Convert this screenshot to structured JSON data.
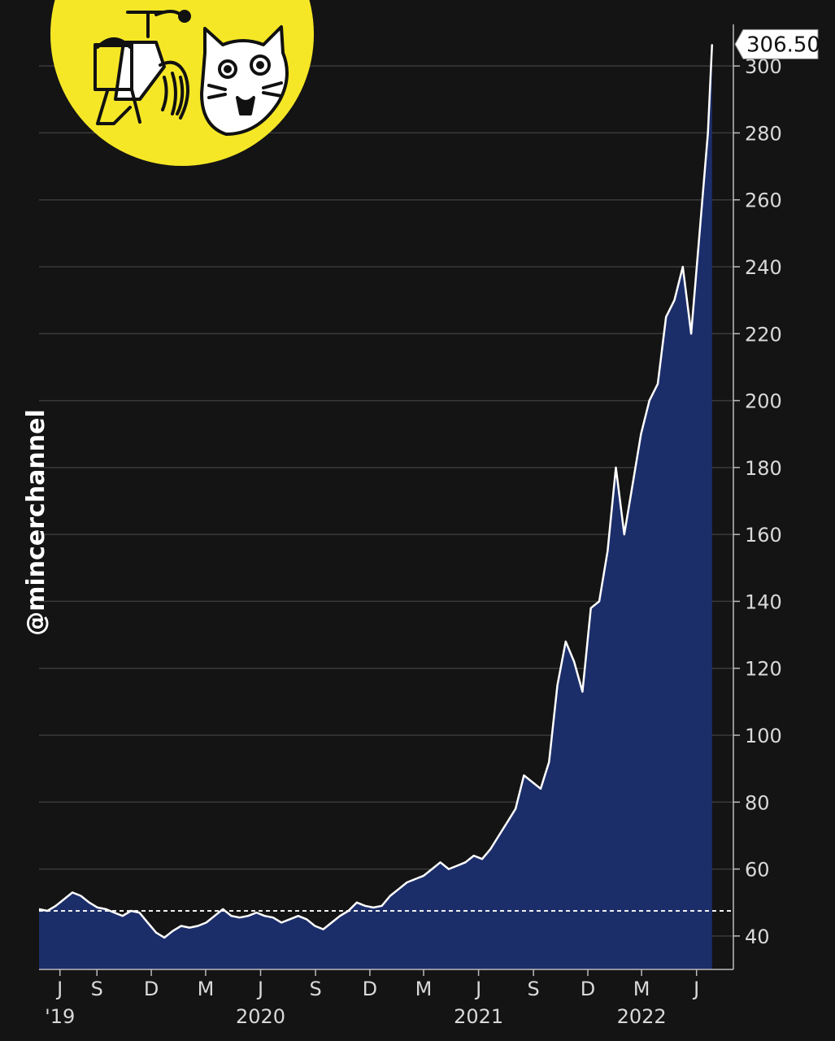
{
  "watermark": {
    "text": "@mincerchannel"
  },
  "logo": {
    "color": "#f5e726",
    "icons": [
      "meat-grinder-icon",
      "cat-face-icon"
    ]
  },
  "colors": {
    "background": "#141414",
    "area_fill": "#1c2e6a",
    "line": "#ffffff",
    "grid": "#3a3a3a",
    "reference_line": "#e03a3a"
  },
  "chart_data": {
    "type": "area",
    "title": "",
    "xlabel": "",
    "ylabel": "",
    "ylim": [
      30,
      310
    ],
    "yticks": [
      40,
      60,
      80,
      100,
      120,
      140,
      160,
      180,
      200,
      220,
      240,
      260,
      280,
      300
    ],
    "grid": true,
    "last_value_label": "306.50",
    "reference_line": {
      "value": 47.5,
      "style": "dashed"
    },
    "x_ticks": [
      {
        "label": "J",
        "date": "2019-07-01"
      },
      {
        "label": "S",
        "date": "2019-09-01"
      },
      {
        "label": "D",
        "date": "2019-12-01"
      },
      {
        "label": "M",
        "date": "2020-03-01"
      },
      {
        "label": "J",
        "date": "2020-06-01"
      },
      {
        "label": "S",
        "date": "2020-09-01"
      },
      {
        "label": "D",
        "date": "2020-12-01"
      },
      {
        "label": "M",
        "date": "2021-03-01"
      },
      {
        "label": "J",
        "date": "2021-06-01"
      },
      {
        "label": "S",
        "date": "2021-09-01"
      },
      {
        "label": "D",
        "date": "2021-12-01"
      },
      {
        "label": "M",
        "date": "2022-03-01"
      },
      {
        "label": "J",
        "date": "2022-06-01"
      }
    ],
    "year_labels": [
      {
        "label": "'19",
        "date": "2019-07-01"
      },
      {
        "label": "2020",
        "date": "2020-06-01"
      },
      {
        "label": "2021",
        "date": "2021-06-01"
      },
      {
        "label": "2022",
        "date": "2022-03-01"
      }
    ],
    "series": [
      {
        "x": [
          "2019-05-27",
          "2019-06-10",
          "2019-06-24",
          "2019-07-08",
          "2019-07-22",
          "2019-08-05",
          "2019-08-19",
          "2019-09-02",
          "2019-09-16",
          "2019-09-30",
          "2019-10-14",
          "2019-10-28",
          "2019-11-11",
          "2019-11-25",
          "2019-12-09",
          "2019-12-23",
          "2020-01-06",
          "2020-01-20",
          "2020-02-03",
          "2020-02-17",
          "2020-03-02",
          "2020-03-16",
          "2020-03-30",
          "2020-04-13",
          "2020-04-27",
          "2020-05-11",
          "2020-05-25",
          "2020-06-08",
          "2020-06-22",
          "2020-07-06",
          "2020-07-20",
          "2020-08-03",
          "2020-08-17",
          "2020-08-31",
          "2020-09-14",
          "2020-09-28",
          "2020-10-12",
          "2020-10-26",
          "2020-11-09",
          "2020-11-23",
          "2020-12-07",
          "2020-12-21",
          "2021-01-04",
          "2021-01-18",
          "2021-02-01",
          "2021-02-15",
          "2021-03-01",
          "2021-03-15",
          "2021-03-29",
          "2021-04-12",
          "2021-04-26",
          "2021-05-10",
          "2021-05-24",
          "2021-06-07",
          "2021-06-21",
          "2021-07-05",
          "2021-07-19",
          "2021-08-02",
          "2021-08-16",
          "2021-08-30",
          "2021-09-13",
          "2021-09-27",
          "2021-10-11",
          "2021-10-25",
          "2021-11-08",
          "2021-11-22",
          "2021-12-06",
          "2021-12-20",
          "2022-01-03",
          "2022-01-17",
          "2022-01-31",
          "2022-02-14",
          "2022-02-28",
          "2022-03-14",
          "2022-03-28",
          "2022-04-11",
          "2022-04-25",
          "2022-05-09",
          "2022-05-23",
          "2022-06-06",
          "2022-06-20",
          "2022-06-27"
        ],
        "y": [
          48,
          47.5,
          49,
          51,
          53,
          52,
          50,
          48.5,
          48,
          47,
          46,
          47.5,
          47,
          44,
          41,
          39.5,
          41.5,
          43,
          42.5,
          43,
          44,
          46,
          48,
          46,
          45.5,
          46,
          47,
          46,
          45.5,
          44,
          45,
          46,
          45,
          43,
          42,
          44,
          46,
          47.5,
          50,
          49,
          48.5,
          49,
          52,
          54,
          56,
          57,
          58,
          60,
          62,
          60,
          61,
          62,
          64,
          63,
          66,
          70,
          74,
          78,
          88,
          86,
          84,
          92,
          115,
          128,
          122,
          113,
          138,
          140,
          155,
          180,
          160,
          175,
          190,
          200,
          205,
          225,
          230,
          240,
          220,
          250,
          280,
          306.5
        ]
      }
    ]
  }
}
